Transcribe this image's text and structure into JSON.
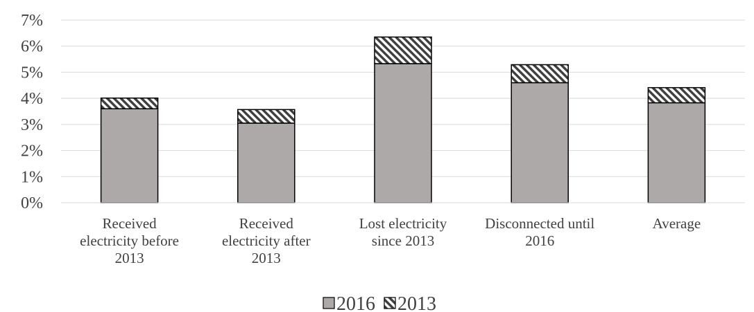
{
  "chart_data": {
    "type": "bar",
    "stacked": true,
    "categories": [
      [
        "Received",
        "electricity before",
        "2013"
      ],
      [
        "Received",
        "electricity after",
        "2013"
      ],
      [
        "Lost electricity",
        "since 2013"
      ],
      [
        "Disconnected until",
        "2016"
      ],
      [
        "Average"
      ]
    ],
    "series": [
      {
        "name": "2016",
        "values": [
          3.6,
          3.05,
          5.33,
          4.6,
          3.83
        ],
        "color": "#ADA9A8",
        "pattern": "solid"
      },
      {
        "name": "2013",
        "values": [
          0.41,
          0.52,
          1.02,
          0.69,
          0.58
        ],
        "color": "#404040",
        "pattern": "diagonal-hatch"
      }
    ],
    "title": "",
    "xlabel": "",
    "ylabel": "",
    "ylim": [
      0,
      7
    ],
    "yticks": [
      "0%",
      "1%",
      "2%",
      "3%",
      "4%",
      "5%",
      "6%",
      "7%"
    ],
    "grid": true,
    "legend": "bottom-center"
  }
}
